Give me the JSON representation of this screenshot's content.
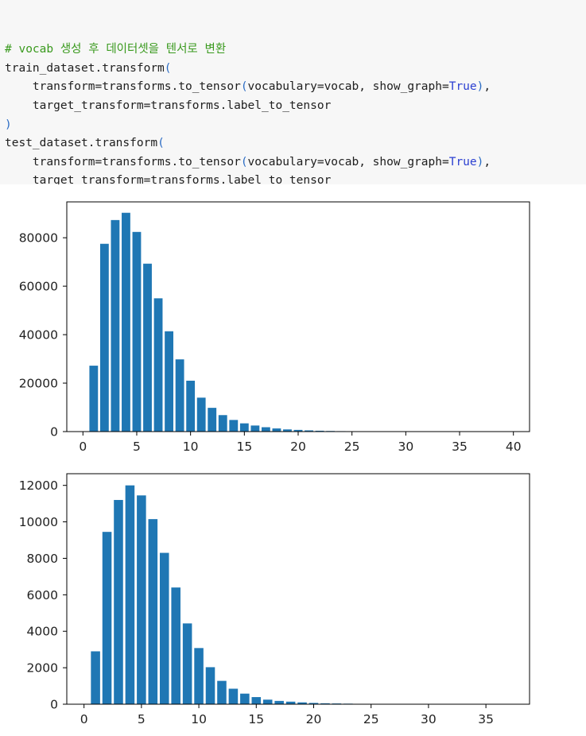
{
  "code_cell": {
    "lines": [
      [
        {
          "t": "# vocab 생성 후 데이터셋을 텐서로 변환",
          "c": "comment"
        }
      ],
      [
        {
          "t": "train_dataset.transform",
          "c": "text"
        },
        {
          "t": "(",
          "c": "paren"
        }
      ],
      [
        {
          "t": "    transform=transforms.to_tensor",
          "c": "text"
        },
        {
          "t": "(",
          "c": "paren"
        },
        {
          "t": "vocabulary=vocab, show_graph=",
          "c": "text"
        },
        {
          "t": "True",
          "c": "kw"
        },
        {
          "t": ")",
          "c": "paren"
        },
        {
          "t": ",",
          "c": "text"
        }
      ],
      [
        {
          "t": "    target_transform=transforms.label_to_tensor",
          "c": "text"
        }
      ],
      [
        {
          "t": ")",
          "c": "paren"
        }
      ],
      [
        {
          "t": "test_dataset.transform",
          "c": "text"
        },
        {
          "t": "(",
          "c": "paren"
        }
      ],
      [
        {
          "t": "    transform=transforms.to_tensor",
          "c": "text"
        },
        {
          "t": "(",
          "c": "paren"
        },
        {
          "t": "vocabulary=vocab, show_graph=",
          "c": "text"
        },
        {
          "t": "True",
          "c": "kw"
        },
        {
          "t": ")",
          "c": "paren"
        },
        {
          "t": ",",
          "c": "text"
        }
      ],
      [
        {
          "t": "    target_transform=transforms.label_to_tensor",
          "c": "text"
        }
      ],
      [
        {
          "t": ")",
          "c": "paren"
        }
      ]
    ]
  },
  "colors": {
    "comment": "#3a9a1e",
    "paren": "#2b6cc4",
    "keyword": "#2b3fd1",
    "bar": "#1f77b4",
    "cell_background": "#f7f7f7"
  },
  "chart_data": [
    {
      "type": "bar",
      "title": "",
      "xlabel": "",
      "ylabel": "",
      "x": [
        1,
        2,
        3,
        4,
        5,
        6,
        7,
        8,
        9,
        10,
        11,
        12,
        13,
        14,
        15,
        16,
        17,
        18,
        19,
        20,
        21,
        22,
        23,
        24,
        25,
        26,
        27,
        28,
        29,
        30,
        31,
        32,
        33,
        34,
        35,
        36,
        37,
        38,
        39,
        40
      ],
      "values": [
        27200,
        77500,
        87300,
        90300,
        82400,
        69300,
        55000,
        41400,
        29800,
        21000,
        14000,
        9800,
        6800,
        4800,
        3400,
        2500,
        1800,
        1300,
        900,
        700,
        500,
        350,
        250,
        180,
        120,
        80,
        60,
        40,
        30,
        20,
        15,
        10,
        8,
        6,
        5,
        4,
        3,
        2,
        2,
        1
      ],
      "xlim": [
        -1.5,
        41.5
      ],
      "ylim": [
        0,
        94800
      ],
      "xticks": [
        0,
        5,
        10,
        15,
        20,
        25,
        30,
        35,
        40
      ],
      "xtick_labels": [
        "0",
        "5",
        "10",
        "15",
        "20",
        "25",
        "30",
        "35",
        "40"
      ],
      "yticks": [
        0,
        20000,
        40000,
        60000,
        80000
      ],
      "ytick_labels": [
        "0",
        "20000",
        "40000",
        "60000",
        "80000"
      ],
      "grid": false,
      "bar_width": 0.8
    },
    {
      "type": "bar",
      "title": "",
      "xlabel": "",
      "ylabel": "",
      "x": [
        1,
        2,
        3,
        4,
        5,
        6,
        7,
        8,
        9,
        10,
        11,
        12,
        13,
        14,
        15,
        16,
        17,
        18,
        19,
        20,
        21,
        22,
        23,
        24,
        25,
        26,
        27,
        28,
        29,
        30,
        31,
        32,
        33,
        34,
        35,
        36,
        37
      ],
      "values": [
        2900,
        9450,
        11200,
        12000,
        11450,
        10150,
        8300,
        6400,
        4430,
        3080,
        2030,
        1280,
        850,
        580,
        390,
        250,
        180,
        140,
        100,
        70,
        50,
        40,
        30,
        20,
        15,
        10,
        8,
        6,
        5,
        4,
        3,
        2,
        2,
        1,
        1,
        1,
        1
      ],
      "xlim": [
        -1.5,
        38.8
      ],
      "ylim": [
        0,
        12640
      ],
      "xticks": [
        0,
        5,
        10,
        15,
        20,
        25,
        30,
        35
      ],
      "xtick_labels": [
        "0",
        "5",
        "10",
        "15",
        "20",
        "25",
        "30",
        "35"
      ],
      "yticks": [
        0,
        2000,
        4000,
        6000,
        8000,
        10000,
        12000
      ],
      "ytick_labels": [
        "0",
        "2000",
        "4000",
        "6000",
        "8000",
        "10000",
        "12000"
      ],
      "grid": false,
      "bar_width": 0.8
    }
  ]
}
